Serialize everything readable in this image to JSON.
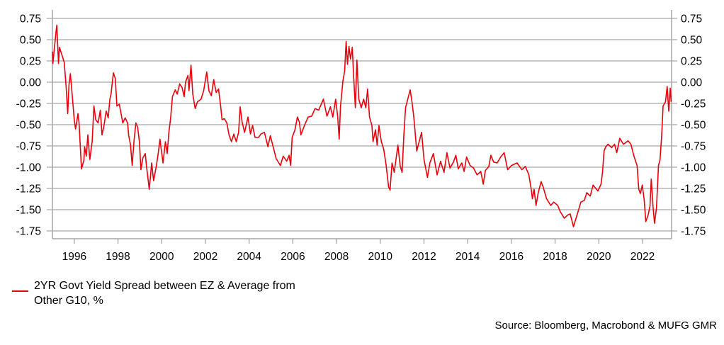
{
  "chart_data": {
    "type": "line",
    "title": "",
    "xlabel": "",
    "ylabel": "",
    "xlim": [
      1995.0,
      2023.33
    ],
    "ylim": [
      -1.75,
      0.75
    ],
    "grid": "horizontal",
    "yticks": [
      "0.75",
      "0.50",
      "0.25",
      "0.00",
      "-0.25",
      "-0.50",
      "-0.75",
      "-1.00",
      "-1.25",
      "-1.50",
      "-1.75"
    ],
    "ytick_values": [
      0.75,
      0.5,
      0.25,
      0,
      -0.25,
      -0.5,
      -0.75,
      -1,
      -1.25,
      -1.5,
      -1.75
    ],
    "xticks": [
      "1996",
      "1998",
      "2000",
      "2002",
      "2004",
      "2006",
      "2008",
      "2010",
      "2012",
      "2014",
      "2016",
      "2018",
      "2020",
      "2022"
    ],
    "legend_placement": "bottom-left",
    "series": [
      {
        "name": "2YR Govt Yield Spread between EZ & Average from Other G10, %",
        "color": "#e8000b",
        "points": [
          [
            1995.0,
            0.36
          ],
          [
            1995.02,
            0.22
          ],
          [
            1995.17,
            0.6
          ],
          [
            1995.2,
            0.67
          ],
          [
            1995.28,
            0.22
          ],
          [
            1995.32,
            0.41
          ],
          [
            1995.46,
            0.3
          ],
          [
            1995.54,
            0.23
          ],
          [
            1995.63,
            -0.06
          ],
          [
            1995.7,
            -0.37
          ],
          [
            1995.76,
            -0.03
          ],
          [
            1995.82,
            0.1
          ],
          [
            1995.9,
            -0.14
          ],
          [
            1996.0,
            -0.45
          ],
          [
            1996.06,
            -0.55
          ],
          [
            1996.17,
            -0.37
          ],
          [
            1996.22,
            -0.48
          ],
          [
            1996.33,
            -1.02
          ],
          [
            1996.44,
            -0.92
          ],
          [
            1996.47,
            -0.76
          ],
          [
            1996.55,
            -0.87
          ],
          [
            1996.62,
            -0.62
          ],
          [
            1996.71,
            -0.91
          ],
          [
            1996.82,
            -0.7
          ],
          [
            1996.9,
            -0.28
          ],
          [
            1996.98,
            -0.44
          ],
          [
            1997.09,
            -0.48
          ],
          [
            1997.19,
            -0.33
          ],
          [
            1997.27,
            -0.62
          ],
          [
            1997.36,
            -0.51
          ],
          [
            1997.46,
            -0.34
          ],
          [
            1997.55,
            -0.42
          ],
          [
            1997.63,
            -0.2
          ],
          [
            1997.68,
            -0.14
          ],
          [
            1997.79,
            0.11
          ],
          [
            1997.88,
            0.04
          ],
          [
            1997.95,
            -0.28
          ],
          [
            1998.06,
            -0.26
          ],
          [
            1998.14,
            -0.37
          ],
          [
            1998.22,
            -0.48
          ],
          [
            1998.33,
            -0.42
          ],
          [
            1998.44,
            -0.48
          ],
          [
            1998.49,
            -0.63
          ],
          [
            1998.57,
            -0.73
          ],
          [
            1998.65,
            -0.98
          ],
          [
            1998.73,
            -0.7
          ],
          [
            1998.82,
            -0.48
          ],
          [
            1998.9,
            -0.53
          ],
          [
            1998.98,
            -0.7
          ],
          [
            1999.05,
            -1.03
          ],
          [
            1999.14,
            -0.89
          ],
          [
            1999.25,
            -0.84
          ],
          [
            1999.3,
            -0.98
          ],
          [
            1999.43,
            -1.26
          ],
          [
            1999.54,
            -0.95
          ],
          [
            1999.63,
            -1.16
          ],
          [
            1999.76,
            -0.98
          ],
          [
            1999.84,
            -0.84
          ],
          [
            1999.92,
            -0.67
          ],
          [
            1999.99,
            -0.81
          ],
          [
            2000.06,
            -0.95
          ],
          [
            2000.17,
            -0.7
          ],
          [
            2000.25,
            -0.84
          ],
          [
            2000.33,
            -0.59
          ],
          [
            2000.41,
            -0.42
          ],
          [
            2000.49,
            -0.17
          ],
          [
            2000.62,
            -0.09
          ],
          [
            2000.71,
            -0.14
          ],
          [
            2000.82,
            -0.02
          ],
          [
            2000.93,
            -0.06
          ],
          [
            2001.03,
            -0.17
          ],
          [
            2001.09,
            0.0
          ],
          [
            2001.2,
            0.08
          ],
          [
            2001.25,
            -0.1
          ],
          [
            2001.34,
            0.2
          ],
          [
            2001.42,
            -0.14
          ],
          [
            2001.53,
            -0.31
          ],
          [
            2001.64,
            -0.23
          ],
          [
            2001.8,
            -0.2
          ],
          [
            2001.92,
            -0.1
          ],
          [
            2002.06,
            0.12
          ],
          [
            2002.16,
            -0.1
          ],
          [
            2002.27,
            -0.16
          ],
          [
            2002.38,
            0.03
          ],
          [
            2002.49,
            -0.12
          ],
          [
            2002.6,
            -0.08
          ],
          [
            2002.7,
            -0.29
          ],
          [
            2002.76,
            -0.44
          ],
          [
            2002.87,
            -0.43
          ],
          [
            2002.98,
            -0.48
          ],
          [
            2003.08,
            -0.62
          ],
          [
            2003.19,
            -0.7
          ],
          [
            2003.3,
            -0.61
          ],
          [
            2003.41,
            -0.7
          ],
          [
            2003.52,
            -0.59
          ],
          [
            2003.59,
            -0.29
          ],
          [
            2003.68,
            -0.47
          ],
          [
            2003.79,
            -0.59
          ],
          [
            2003.95,
            -0.41
          ],
          [
            2004.06,
            -0.61
          ],
          [
            2004.16,
            -0.51
          ],
          [
            2004.27,
            -0.65
          ],
          [
            2004.43,
            -0.65
          ],
          [
            2004.54,
            -0.61
          ],
          [
            2004.7,
            -0.59
          ],
          [
            2004.86,
            -0.76
          ],
          [
            2004.97,
            -0.63
          ],
          [
            2005.13,
            -0.79
          ],
          [
            2005.24,
            -0.9
          ],
          [
            2005.43,
            -0.98
          ],
          [
            2005.56,
            -0.87
          ],
          [
            2005.72,
            -0.93
          ],
          [
            2005.83,
            -0.86
          ],
          [
            2005.9,
            -0.98
          ],
          [
            2005.97,
            -0.65
          ],
          [
            2006.1,
            -0.56
          ],
          [
            2006.21,
            -0.41
          ],
          [
            2006.3,
            -0.47
          ],
          [
            2006.37,
            -0.62
          ],
          [
            2006.53,
            -0.51
          ],
          [
            2006.7,
            -0.41
          ],
          [
            2006.86,
            -0.4
          ],
          [
            2007.02,
            -0.31
          ],
          [
            2007.18,
            -0.33
          ],
          [
            2007.4,
            -0.2
          ],
          [
            2007.56,
            -0.4
          ],
          [
            2007.72,
            -0.29
          ],
          [
            2007.83,
            -0.41
          ],
          [
            2007.96,
            -0.2
          ],
          [
            2008.05,
            -0.4
          ],
          [
            2008.12,
            -0.67
          ],
          [
            2008.18,
            -0.29
          ],
          [
            2008.29,
            0.01
          ],
          [
            2008.37,
            0.13
          ],
          [
            2008.44,
            0.48
          ],
          [
            2008.5,
            0.21
          ],
          [
            2008.57,
            0.42
          ],
          [
            2008.64,
            0.27
          ],
          [
            2008.72,
            0.41
          ],
          [
            2008.78,
            0.08
          ],
          [
            2008.86,
            -0.3
          ],
          [
            2008.93,
            0.26
          ],
          [
            2009.02,
            -0.2
          ],
          [
            2009.13,
            -0.3
          ],
          [
            2009.24,
            -0.2
          ],
          [
            2009.34,
            -0.3
          ],
          [
            2009.42,
            -0.08
          ],
          [
            2009.51,
            -0.41
          ],
          [
            2009.62,
            -0.51
          ],
          [
            2009.67,
            -0.7
          ],
          [
            2009.78,
            -0.56
          ],
          [
            2009.86,
            -0.74
          ],
          [
            2009.94,
            -0.51
          ],
          [
            2010.05,
            -0.7
          ],
          [
            2010.16,
            -0.79
          ],
          [
            2010.27,
            -0.98
          ],
          [
            2010.38,
            -1.23
          ],
          [
            2010.45,
            -1.27
          ],
          [
            2010.54,
            -0.95
          ],
          [
            2010.64,
            -1.06
          ],
          [
            2010.81,
            -0.74
          ],
          [
            2010.91,
            -0.98
          ],
          [
            2011.0,
            -1.06
          ],
          [
            2011.08,
            -0.62
          ],
          [
            2011.16,
            -0.3
          ],
          [
            2011.27,
            -0.19
          ],
          [
            2011.37,
            -0.09
          ],
          [
            2011.45,
            -0.23
          ],
          [
            2011.53,
            -0.4
          ],
          [
            2011.67,
            -0.81
          ],
          [
            2011.78,
            -0.7
          ],
          [
            2011.89,
            -0.59
          ],
          [
            2012.0,
            -0.91
          ],
          [
            2012.16,
            -1.12
          ],
          [
            2012.27,
            -0.95
          ],
          [
            2012.43,
            -0.84
          ],
          [
            2012.6,
            -1.09
          ],
          [
            2012.76,
            -0.93
          ],
          [
            2012.92,
            -1.06
          ],
          [
            2013.05,
            -0.83
          ],
          [
            2013.19,
            -1.01
          ],
          [
            2013.35,
            -0.94
          ],
          [
            2013.46,
            -0.86
          ],
          [
            2013.57,
            -1.02
          ],
          [
            2013.73,
            -0.95
          ],
          [
            2013.84,
            -1.05
          ],
          [
            2013.95,
            -0.88
          ],
          [
            2014.11,
            -0.98
          ],
          [
            2014.27,
            -1.01
          ],
          [
            2014.43,
            -1.09
          ],
          [
            2014.6,
            -1.05
          ],
          [
            2014.71,
            -1.2
          ],
          [
            2014.81,
            -1.04
          ],
          [
            2014.97,
            -0.99
          ],
          [
            2015.06,
            -0.86
          ],
          [
            2015.19,
            -0.94
          ],
          [
            2015.35,
            -0.95
          ],
          [
            2015.51,
            -0.88
          ],
          [
            2015.67,
            -0.83
          ],
          [
            2015.83,
            -1.03
          ],
          [
            2016.0,
            -0.98
          ],
          [
            2016.26,
            -0.95
          ],
          [
            2016.48,
            -1.03
          ],
          [
            2016.64,
            -0.99
          ],
          [
            2016.8,
            -1.09
          ],
          [
            2016.91,
            -1.26
          ],
          [
            2016.96,
            -1.37
          ],
          [
            2017.04,
            -1.26
          ],
          [
            2017.13,
            -1.45
          ],
          [
            2017.23,
            -1.3
          ],
          [
            2017.36,
            -1.17
          ],
          [
            2017.45,
            -1.23
          ],
          [
            2017.61,
            -1.37
          ],
          [
            2017.8,
            -1.45
          ],
          [
            2017.94,
            -1.41
          ],
          [
            2018.12,
            -1.45
          ],
          [
            2018.23,
            -1.52
          ],
          [
            2018.42,
            -1.6
          ],
          [
            2018.59,
            -1.56
          ],
          [
            2018.69,
            -1.55
          ],
          [
            2018.84,
            -1.7
          ],
          [
            2019.02,
            -1.55
          ],
          [
            2019.18,
            -1.41
          ],
          [
            2019.34,
            -1.39
          ],
          [
            2019.45,
            -1.3
          ],
          [
            2019.61,
            -1.34
          ],
          [
            2019.74,
            -1.21
          ],
          [
            2019.96,
            -1.28
          ],
          [
            2020.1,
            -1.2
          ],
          [
            2020.17,
            -1.06
          ],
          [
            2020.24,
            -0.81
          ],
          [
            2020.32,
            -0.76
          ],
          [
            2020.42,
            -0.73
          ],
          [
            2020.59,
            -0.77
          ],
          [
            2020.72,
            -0.73
          ],
          [
            2020.82,
            -0.83
          ],
          [
            2020.96,
            -0.66
          ],
          [
            2021.13,
            -0.73
          ],
          [
            2021.34,
            -0.69
          ],
          [
            2021.47,
            -0.73
          ],
          [
            2021.61,
            -0.87
          ],
          [
            2021.75,
            -0.98
          ],
          [
            2021.83,
            -1.26
          ],
          [
            2021.9,
            -1.31
          ],
          [
            2021.99,
            -1.21
          ],
          [
            2022.08,
            -1.39
          ],
          [
            2022.15,
            -1.64
          ],
          [
            2022.26,
            -1.56
          ],
          [
            2022.34,
            -1.46
          ],
          [
            2022.4,
            -1.14
          ],
          [
            2022.48,
            -1.46
          ],
          [
            2022.55,
            -1.66
          ],
          [
            2022.64,
            -1.48
          ],
          [
            2022.73,
            -0.98
          ],
          [
            2022.8,
            -0.92
          ],
          [
            2022.88,
            -0.62
          ],
          [
            2022.94,
            -0.28
          ],
          [
            2023.05,
            -0.23
          ],
          [
            2023.13,
            -0.05
          ],
          [
            2023.2,
            -0.34
          ],
          [
            2023.27,
            -0.07
          ],
          [
            2023.31,
            -0.23
          ]
        ]
      }
    ],
    "legend": {
      "line1": "2YR Govt Yield Spread between EZ & Average from",
      "line2": "Other G10, %"
    },
    "source": "Source: Bloomberg, Macrobond & MUFG GMR"
  }
}
